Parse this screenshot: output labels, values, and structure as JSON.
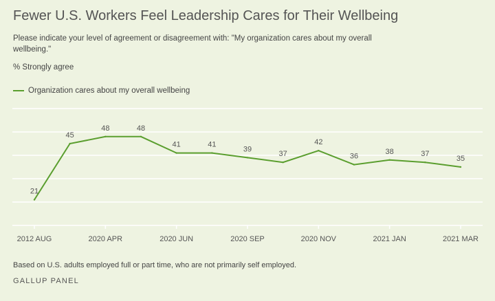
{
  "title": "Fewer U.S. Workers Feel Leadership Cares for Their Wellbeing",
  "subtitle": "Please indicate your level of agreement or disagreement with: \"My organization cares about my overall wellbeing.\"",
  "measure_label": "% Strongly agree",
  "footnote": "Based on U.S. adults employed full or part time, who are not primarily self employed.",
  "source": "GALLUP PANEL",
  "colors": {
    "line": "#5a9e2e",
    "grid": "#ffffff",
    "background": "#eef3e1"
  },
  "chart_data": {
    "type": "line",
    "x_tick_labels": [
      "2012 AUG",
      "2020 APR",
      "2020 JUN",
      "2020 SEP",
      "2020 NOV",
      "2021 JAN",
      "2021 MAR"
    ],
    "series": [
      {
        "name": "Organization cares about my overall wellbeing",
        "values": [
          21,
          45,
          48,
          48,
          41,
          41,
          39,
          37,
          42,
          36,
          38,
          37,
          35
        ]
      }
    ],
    "ylim": [
      10,
      60
    ],
    "grid": true,
    "legend_position": "top-left"
  }
}
